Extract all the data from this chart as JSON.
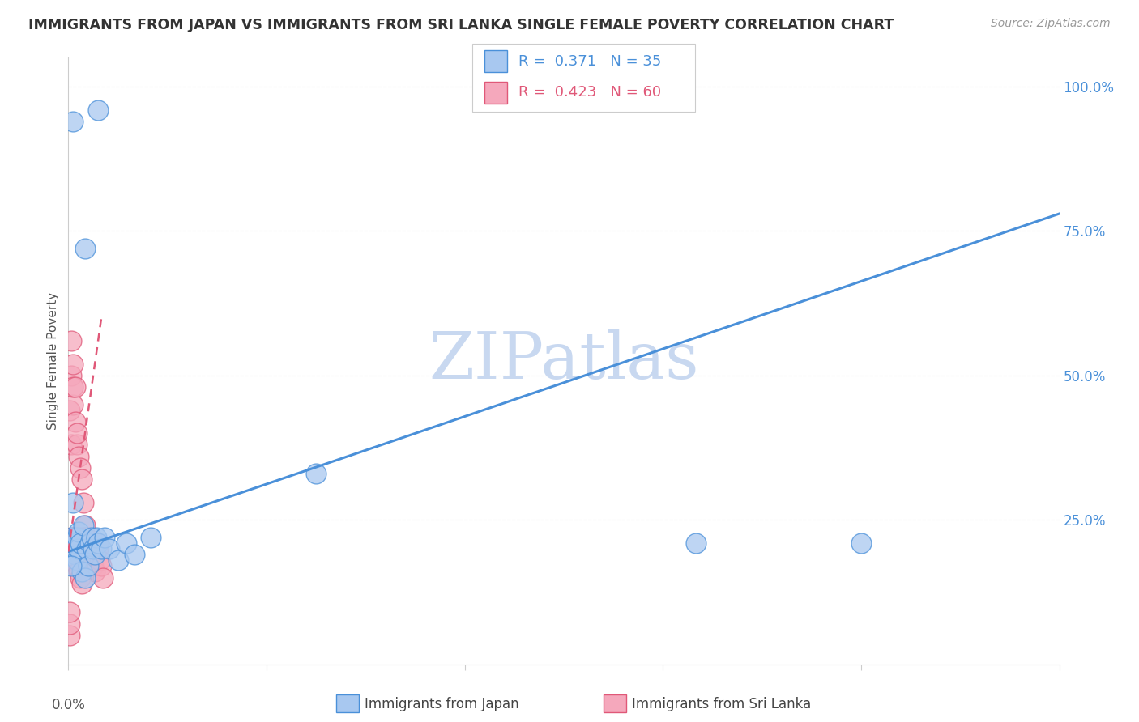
{
  "title": "IMMIGRANTS FROM JAPAN VS IMMIGRANTS FROM SRI LANKA SINGLE FEMALE POVERTY CORRELATION CHART",
  "source": "Source: ZipAtlas.com",
  "ylabel": "Single Female Poverty",
  "xlim": [
    0.0,
    0.6
  ],
  "ylim": [
    0.0,
    1.05
  ],
  "ytick_labels_right": [
    "25.0%",
    "50.0%",
    "75.0%",
    "100.0%"
  ],
  "ytick_vals_right": [
    0.25,
    0.5,
    0.75,
    1.0
  ],
  "japan_R": 0.371,
  "japan_N": 35,
  "srilanka_R": 0.423,
  "srilanka_N": 60,
  "japan_color": "#A8C8F0",
  "srilanka_color": "#F5A8BC",
  "japan_line_color": "#4A90D9",
  "srilanka_line_color": "#E05878",
  "watermark": "ZIPatlas",
  "watermark_color": "#C8D8F0",
  "background_color": "#FFFFFF",
  "japan_scatter_x": [
    0.003,
    0.01,
    0.018,
    0.002,
    0.003,
    0.004,
    0.004,
    0.005,
    0.005,
    0.006,
    0.006,
    0.007,
    0.008,
    0.009,
    0.01,
    0.011,
    0.012,
    0.013,
    0.014,
    0.015,
    0.016,
    0.017,
    0.018,
    0.02,
    0.022,
    0.025,
    0.03,
    0.035,
    0.04,
    0.05,
    0.38,
    0.002,
    0.003,
    0.48,
    0.15
  ],
  "japan_scatter_y": [
    0.94,
    0.72,
    0.96,
    0.22,
    0.2,
    0.19,
    0.21,
    0.18,
    0.22,
    0.2,
    0.23,
    0.21,
    0.16,
    0.24,
    0.15,
    0.2,
    0.17,
    0.21,
    0.22,
    0.2,
    0.19,
    0.22,
    0.21,
    0.2,
    0.22,
    0.2,
    0.18,
    0.21,
    0.19,
    0.22,
    0.21,
    0.17,
    0.28,
    0.21,
    0.33
  ],
  "srilanka_scatter_x": [
    0.001,
    0.002,
    0.002,
    0.002,
    0.002,
    0.002,
    0.003,
    0.003,
    0.003,
    0.003,
    0.003,
    0.004,
    0.004,
    0.004,
    0.004,
    0.005,
    0.005,
    0.005,
    0.005,
    0.006,
    0.006,
    0.006,
    0.007,
    0.007,
    0.007,
    0.008,
    0.008,
    0.008,
    0.009,
    0.009,
    0.01,
    0.01,
    0.01,
    0.011,
    0.011,
    0.012,
    0.012,
    0.013,
    0.013,
    0.014,
    0.014,
    0.015,
    0.015,
    0.016,
    0.016,
    0.017,
    0.018,
    0.019,
    0.02,
    0.021,
    0.002,
    0.003,
    0.004,
    0.005,
    0.006,
    0.007,
    0.008,
    0.001,
    0.001,
    0.001
  ],
  "srilanka_scatter_y": [
    0.44,
    0.38,
    0.5,
    0.22,
    0.2,
    0.56,
    0.45,
    0.52,
    0.2,
    0.22,
    0.48,
    0.42,
    0.2,
    0.22,
    0.48,
    0.38,
    0.2,
    0.22,
    0.4,
    0.36,
    0.2,
    0.22,
    0.34,
    0.22,
    0.2,
    0.32,
    0.22,
    0.2,
    0.28,
    0.22,
    0.24,
    0.22,
    0.2,
    0.22,
    0.2,
    0.21,
    0.2,
    0.2,
    0.18,
    0.18,
    0.2,
    0.17,
    0.2,
    0.16,
    0.2,
    0.21,
    0.2,
    0.18,
    0.17,
    0.15,
    0.18,
    0.19,
    0.18,
    0.17,
    0.16,
    0.15,
    0.14,
    0.05,
    0.07,
    0.09
  ],
  "japan_trend_x": [
    0.0,
    0.6
  ],
  "japan_trend_y": [
    0.195,
    0.78
  ],
  "srilanka_trend_x": [
    0.0,
    0.02
  ],
  "srilanka_trend_y": [
    0.195,
    0.6
  ]
}
